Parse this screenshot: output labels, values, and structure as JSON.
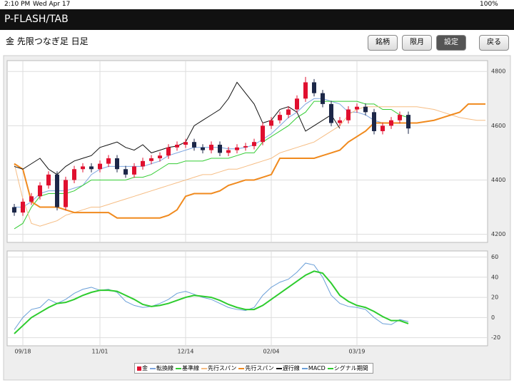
{
  "status_bar": {
    "time": "2:10 PM",
    "date": "Wed Apr 17",
    "battery": "100%"
  },
  "header": {
    "title": "P-FLASH/TAB"
  },
  "toolbar": {
    "subtitle": "金 先限つなぎ足 日足",
    "buttons": [
      "銘柄",
      "限月",
      "設定",
      "戻る"
    ]
  },
  "chart_data": [
    {
      "type": "candlestick",
      "categories": [
        null,
        "09/18",
        null,
        null,
        null,
        null,
        null,
        null,
        null,
        null,
        "11/01",
        null,
        null,
        null,
        null,
        null,
        null,
        null,
        null,
        null,
        "12/14",
        null,
        null,
        null,
        null,
        null,
        null,
        null,
        null,
        null,
        "02/04",
        null,
        null,
        null,
        null,
        null,
        null,
        null,
        null,
        null,
        "03/19",
        null,
        null,
        null,
        null,
        null,
        null,
        null,
        null,
        null,
        null,
        null,
        null,
        null,
        null,
        null
      ],
      "ylim": [
        4170,
        4840
      ],
      "yticks": [
        4200,
        4400,
        4600,
        4800
      ],
      "grid": true,
      "series": [
        {
          "name": "金",
          "color": "#e0102f",
          "down_color": "#1c2748",
          "open": [
            4300,
            4280,
            4320,
            4340,
            4380,
            4420,
            4300,
            4400,
            4440,
            4450,
            4440,
            4460,
            4480,
            4440,
            4420,
            4450,
            4470,
            4480,
            4490,
            4520,
            4530,
            4540,
            4520,
            4510,
            4530,
            4500,
            4510,
            4520,
            4525,
            4540,
            4600,
            4620,
            4640,
            4660,
            4700,
            4760,
            4720,
            4680,
            4610,
            4620,
            4660,
            4670,
            4650,
            4580,
            4600,
            4620,
            4640,
            null,
            null,
            null,
            null,
            null,
            null,
            null,
            null,
            null
          ],
          "high": [
            4312,
            4332,
            4352,
            4392,
            4432,
            4432,
            4412,
            4452,
            4462,
            4462,
            4472,
            4492,
            4492,
            4452,
            4462,
            4482,
            4492,
            4502,
            4532,
            4542,
            4552,
            4552,
            4532,
            4542,
            4542,
            4522,
            4532,
            4537,
            4552,
            4612,
            4632,
            4652,
            4672,
            4712,
            4780,
            4772,
            4732,
            4692,
            4632,
            4672,
            4682,
            4682,
            4662,
            4612,
            4632,
            4652,
            4652,
            null,
            null,
            null,
            null,
            null,
            null,
            null,
            null,
            null
          ],
          "low": [
            4268,
            4268,
            4308,
            4328,
            4368,
            4288,
            4288,
            4388,
            4428,
            4428,
            4428,
            4448,
            4428,
            4408,
            4408,
            4438,
            4458,
            4468,
            4478,
            4508,
            4518,
            4508,
            4498,
            4498,
            4488,
            4488,
            4498,
            4508,
            4513,
            4528,
            4588,
            4608,
            4628,
            4648,
            4688,
            4708,
            4668,
            4598,
            4598,
            4608,
            4648,
            4638,
            4568,
            4568,
            4588,
            4608,
            4570,
            null,
            null,
            null,
            null,
            null,
            null,
            null,
            null,
            null
          ],
          "close": [
            4280,
            4320,
            4340,
            4380,
            4420,
            4300,
            4400,
            4440,
            4450,
            4440,
            4460,
            4480,
            4440,
            4420,
            4450,
            4470,
            4480,
            4490,
            4520,
            4530,
            4540,
            4520,
            4510,
            4530,
            4500,
            4510,
            4520,
            4525,
            4540,
            4600,
            4620,
            4640,
            4660,
            4700,
            4760,
            4720,
            4680,
            4610,
            4620,
            4660,
            4670,
            4650,
            4580,
            4600,
            4620,
            4640,
            4590,
            null,
            null,
            null,
            null,
            null,
            null,
            null,
            null,
            null
          ]
        },
        {
          "name": "転換線",
          "color": "#7ea6e0",
          "values": [
            4300,
            4300,
            4320,
            4350,
            4360,
            4360,
            4360,
            4370,
            4380,
            4420,
            4440,
            4450,
            4450,
            4450,
            4450,
            4450,
            4460,
            4470,
            4490,
            4500,
            4510,
            4520,
            4520,
            4520,
            4520,
            4515,
            4515,
            4520,
            4530,
            4550,
            4570,
            4600,
            4630,
            4650,
            4680,
            4700,
            4700,
            4690,
            4680,
            4650,
            4650,
            4640,
            4620,
            4610,
            4610,
            4610,
            4610,
            null,
            null,
            null,
            null,
            null,
            null,
            null,
            null,
            null
          ]
        },
        {
          "name": "基準線",
          "color": "#33cc33",
          "values": [
            4220,
            4240,
            4300,
            4340,
            4350,
            4350,
            4350,
            4360,
            4380,
            4400,
            4400,
            4400,
            4400,
            4400,
            4410,
            4410,
            4420,
            4440,
            4460,
            4460,
            4470,
            4470,
            4470,
            4480,
            4480,
            4480,
            4490,
            4500,
            4500,
            4540,
            4560,
            4580,
            4600,
            4630,
            4650,
            4690,
            4690,
            4690,
            4690,
            4690,
            4690,
            4680,
            4680,
            4660,
            4660,
            4640,
            4630,
            null,
            null,
            null,
            null,
            null,
            null,
            null,
            null,
            null
          ]
        },
        {
          "name": "先行スパン",
          "color": "#f6bd84",
          "values": [
            4460,
            4330,
            4240,
            4230,
            4240,
            4250,
            4270,
            4280,
            4290,
            4300,
            4300,
            4310,
            4320,
            4330,
            4340,
            4350,
            4360,
            4370,
            4380,
            4390,
            4400,
            4410,
            4420,
            4420,
            4430,
            4440,
            4440,
            4450,
            4460,
            4470,
            4480,
            4500,
            4510,
            4520,
            4530,
            4540,
            4560,
            4580,
            4600,
            4640,
            4660,
            4670,
            4670,
            4670,
            4670,
            4670,
            4670,
            4670,
            4665,
            4660,
            4650,
            4640,
            4630,
            4625,
            4620,
            4620
          ]
        },
        {
          "name": "先行スパン",
          "color": "#f08a1e",
          "values": [
            4460,
            4440,
            4320,
            4300,
            4300,
            4300,
            4290,
            4280,
            4280,
            4280,
            4280,
            4280,
            4260,
            4260,
            4260,
            4260,
            4260,
            4260,
            4270,
            4290,
            4340,
            4350,
            4350,
            4350,
            4360,
            4380,
            4390,
            4400,
            4400,
            4410,
            4420,
            4480,
            4480,
            4480,
            4480,
            4480,
            4490,
            4500,
            4510,
            4540,
            4560,
            4580,
            4610,
            4610,
            4610,
            4610,
            4610,
            4610,
            4615,
            4620,
            4630,
            4640,
            4650,
            4680,
            4680,
            4680
          ]
        },
        {
          "name": "遅行線",
          "color": "#111111",
          "values": [
            4450,
            4440,
            4460,
            4480,
            4440,
            4420,
            4450,
            4470,
            4480,
            4490,
            4520,
            4530,
            4540,
            4520,
            4510,
            4530,
            4500,
            4510,
            4520,
            4525,
            4540,
            4600,
            4620,
            4640,
            4660,
            4700,
            4760,
            4720,
            4680,
            4610,
            4620,
            4660,
            4670,
            4650,
            4580,
            4600,
            4620,
            4640,
            4590,
            null,
            null,
            null,
            null,
            null,
            null,
            null,
            null,
            null,
            null,
            null,
            null,
            null,
            null,
            null,
            null,
            null
          ]
        }
      ]
    },
    {
      "type": "line",
      "ylim": [
        -28,
        66
      ],
      "yticks": [
        60,
        40,
        20,
        0,
        -20
      ],
      "grid": true,
      "series": [
        {
          "name": "MACD",
          "color": "#6a9fd8",
          "values": [
            -12,
            0,
            8,
            10,
            18,
            14,
            18,
            24,
            28,
            30,
            27,
            28,
            25,
            16,
            12,
            10,
            11,
            14,
            18,
            24,
            26,
            23,
            20,
            18,
            14,
            10,
            8,
            7,
            10,
            22,
            30,
            35,
            38,
            45,
            54,
            52,
            40,
            22,
            14,
            11,
            10,
            8,
            0,
            -6,
            -7,
            -2,
            -4,
            null,
            null,
            null,
            null,
            null,
            null,
            null,
            null,
            null
          ]
        },
        {
          "name": "シグナル期間",
          "color": "#2ecc2e",
          "values": [
            -16,
            -8,
            0,
            5,
            10,
            14,
            15,
            18,
            22,
            25,
            27,
            27,
            26,
            22,
            18,
            13,
            11,
            12,
            14,
            17,
            20,
            22,
            21,
            20,
            17,
            13,
            10,
            8,
            8,
            12,
            18,
            24,
            30,
            36,
            42,
            46,
            44,
            34,
            22,
            16,
            12,
            10,
            6,
            1,
            -3,
            -3,
            -6,
            null,
            null,
            null,
            null,
            null,
            null,
            null,
            null,
            null
          ]
        }
      ]
    }
  ]
}
